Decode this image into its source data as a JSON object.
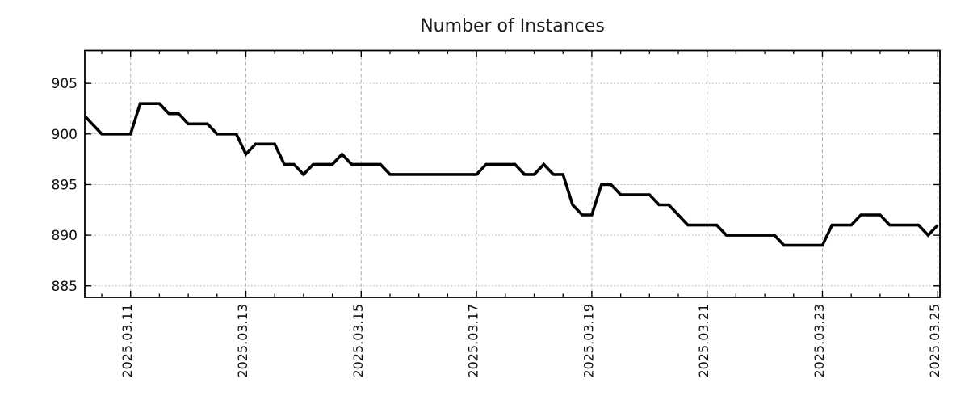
{
  "page": {
    "background": "#ffffff"
  },
  "chart_data": {
    "type": "line",
    "title": "Number of Instances",
    "legend_position": "none",
    "xlabel": "",
    "ylabel": "",
    "x_axis": {
      "start_time": "2025.03.10 04:00",
      "step_hours": 4,
      "major_tick_labels": [
        "2025.03.11",
        "2025.03.13",
        "2025.03.15",
        "2025.03.17",
        "2025.03.19",
        "2025.03.21",
        "2025.03.23",
        "2025.03.25"
      ],
      "major_tick_point_indices": [
        5,
        17,
        29,
        41,
        53,
        65,
        77,
        89
      ],
      "minor_tick_start_index": 2,
      "minor_tick_every_points": 3,
      "label_rotation_deg": -90
    },
    "y_axis": {
      "tick_labels": [
        "885",
        "890",
        "895",
        "900",
        "905"
      ],
      "ticks": [
        885,
        890,
        895,
        900,
        905
      ],
      "ylim": [
        884.1,
        908.3
      ]
    },
    "grid": {
      "horizontal_style": "dotted",
      "vertical_style": "dashed",
      "color": "#b0b0b0"
    },
    "series": [
      {
        "name": "instances",
        "color": "#000000",
        "line_width": 3.6,
        "values": [
          902,
          901,
          900,
          900,
          900,
          900,
          903,
          903,
          903,
          902,
          902,
          901,
          901,
          901,
          900,
          900,
          900,
          898,
          899,
          899,
          899,
          897,
          897,
          896,
          897,
          897,
          897,
          898,
          897,
          897,
          897,
          897,
          896,
          896,
          896,
          896,
          896,
          896,
          896,
          896,
          896,
          896,
          897,
          897,
          897,
          897,
          896,
          896,
          897,
          896,
          896,
          893,
          892,
          892,
          895,
          895,
          894,
          894,
          894,
          894,
          893,
          893,
          892,
          891,
          891,
          891,
          891,
          890,
          890,
          890,
          890,
          890,
          890,
          889,
          889,
          889,
          889,
          889,
          891,
          891,
          891,
          892,
          892,
          892,
          891,
          891,
          891,
          891,
          890,
          891
        ]
      }
    ]
  }
}
